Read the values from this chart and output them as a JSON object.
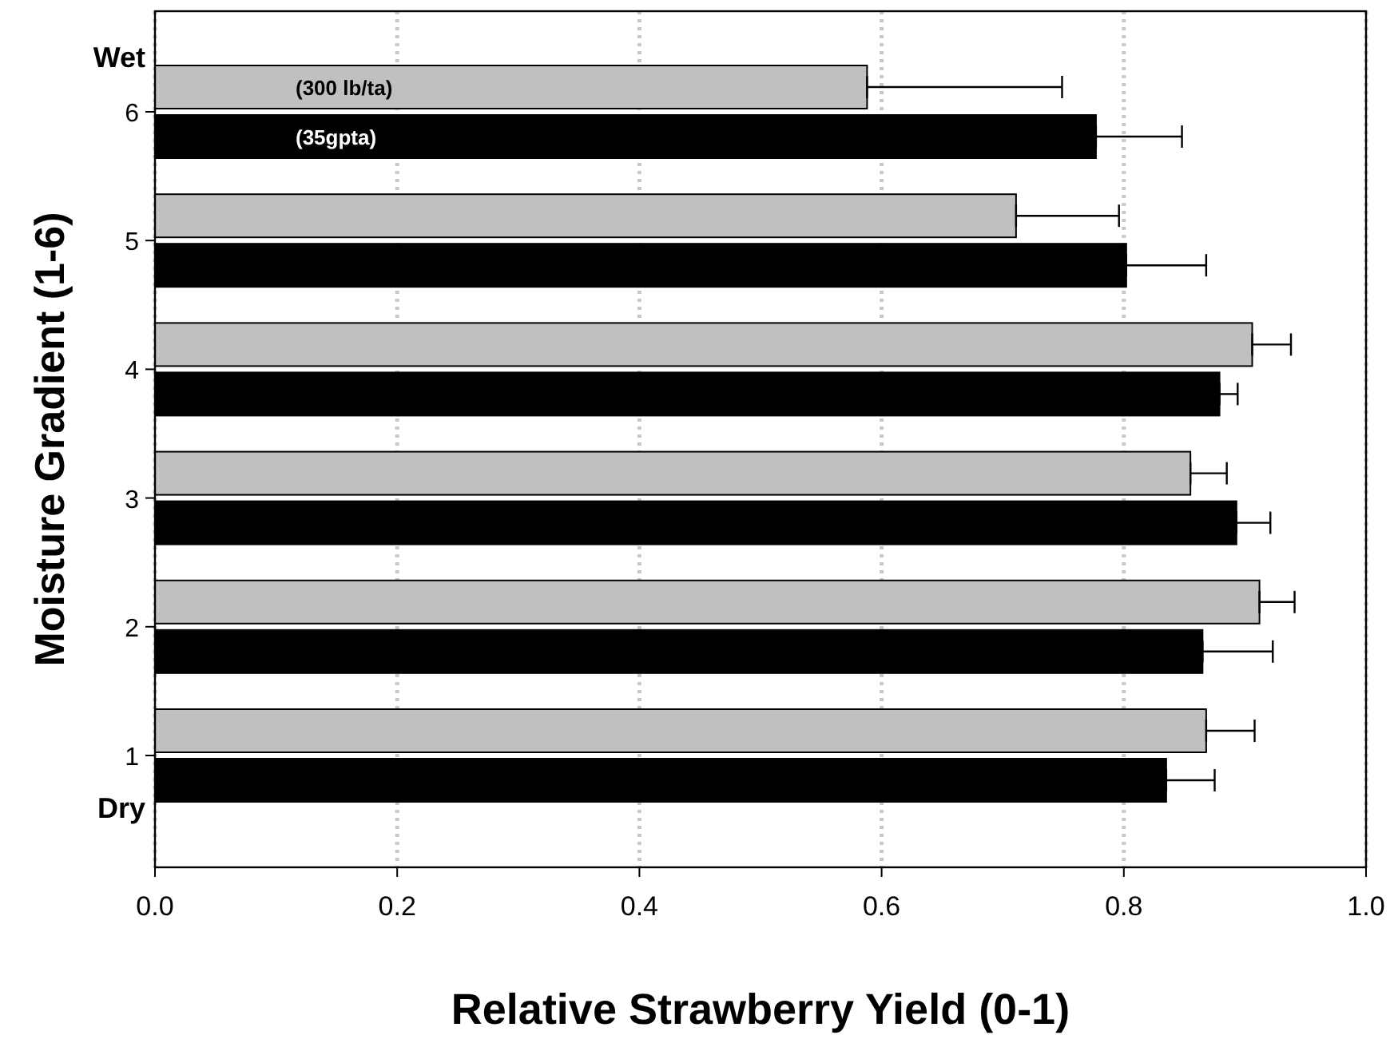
{
  "chart_data": {
    "type": "bar",
    "orientation": "horizontal",
    "xlabel": "Relative Strawberry Yield (0-1)",
    "ylabel": "Moisture Gradient (1-6)",
    "categories": [
      "6",
      "5",
      "4",
      "3",
      "2",
      "1"
    ],
    "series": [
      {
        "name": "(300 lb/ta)",
        "color": "#c0c0c0",
        "values": [
          0.588,
          0.711,
          0.906,
          0.855,
          0.912,
          0.868
        ],
        "errors": [
          [
            0.588,
            0.749
          ],
          [
            0.711,
            0.796
          ],
          [
            0.906,
            0.938
          ],
          [
            0.855,
            0.885
          ],
          [
            0.912,
            0.941
          ],
          [
            0.868,
            0.908
          ]
        ]
      },
      {
        "name": "(35gpta)",
        "color": "#000000",
        "values": [
          0.777,
          0.802,
          0.879,
          0.893,
          0.865,
          0.835
        ],
        "errors": [
          [
            0.777,
            0.848
          ],
          [
            0.802,
            0.868
          ],
          [
            0.879,
            0.894
          ],
          [
            0.893,
            0.921
          ],
          [
            0.865,
            0.923
          ],
          [
            0.835,
            0.875
          ]
        ]
      }
    ],
    "xlim": [
      0,
      1
    ],
    "xticks": [
      {
        "value": 0,
        "label": "0.0"
      },
      {
        "value": 0.2,
        "label": "0.2"
      },
      {
        "value": 0.4,
        "label": "0.4"
      },
      {
        "value": 0.6,
        "label": "0.6"
      },
      {
        "value": 0.8,
        "label": "0.8"
      },
      {
        "value": 1,
        "label": "1.0"
      }
    ],
    "grid": "x",
    "legend": false,
    "annotations": [
      "Wet",
      "Dry"
    ]
  }
}
